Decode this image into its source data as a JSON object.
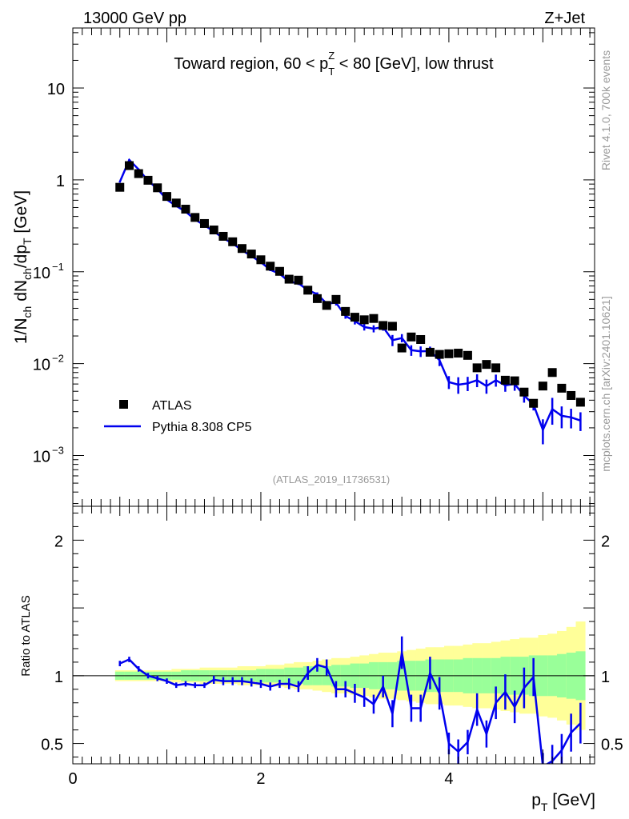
{
  "header": {
    "energy_label": "13000 GeV pp",
    "process_label": "Z+Jet",
    "side_rivet": "Rivet 4.1.0,  700k events",
    "side_source": "mcplots.cern.ch [arXiv:2401.10621]",
    "analysis_id": "(ATLAS_2019_I1736531)"
  },
  "chart_data": [
    {
      "type": "scatter",
      "name": "main",
      "title": "Toward region, 60 < p_T^Z < 80 [GeV], low thrust",
      "ylabel": "1/N_ch dN_ch/dp_T [GeV]",
      "yscale": "log",
      "ylim": [
        0.00028,
        45
      ],
      "xlim": [
        0,
        5.55
      ],
      "y_ticks": [
        {
          "value": 10,
          "label": "10"
        },
        {
          "value": 1,
          "label": "1"
        },
        {
          "value": 0.1,
          "label": "10",
          "exp": "−1"
        },
        {
          "value": 0.01,
          "label": "10",
          "exp": "−2"
        },
        {
          "value": 0.001,
          "label": "10",
          "exp": "−3"
        }
      ],
      "legend": [
        {
          "name": "ATLAS",
          "marker": "square",
          "color": "#000000"
        },
        {
          "name": "Pythia 8.308 CP5",
          "marker": "line",
          "color": "#0000ee"
        }
      ],
      "series": [
        {
          "name": "ATLAS",
          "x": [
            0.5,
            0.6,
            0.7,
            0.8,
            0.9,
            1.0,
            1.1,
            1.2,
            1.3,
            1.4,
            1.5,
            1.6,
            1.7,
            1.8,
            1.9,
            2.0,
            2.1,
            2.2,
            2.3,
            2.4,
            2.5,
            2.6,
            2.7,
            2.8,
            2.9,
            3.0,
            3.1,
            3.2,
            3.3,
            3.4,
            3.5,
            3.6,
            3.7,
            3.8,
            3.9,
            4.0,
            4.1,
            4.2,
            4.3,
            4.4,
            4.5,
            4.6,
            4.7,
            4.8,
            4.9,
            5.0,
            5.1,
            5.2,
            5.3,
            5.4
          ],
          "values": [
            0.83,
            1.43,
            1.17,
            0.99,
            0.82,
            0.66,
            0.56,
            0.48,
            0.39,
            0.335,
            0.285,
            0.243,
            0.212,
            0.179,
            0.156,
            0.135,
            0.115,
            0.101,
            0.083,
            0.081,
            0.063,
            0.051,
            0.043,
            0.05,
            0.037,
            0.032,
            0.03,
            0.031,
            0.026,
            0.0255,
            0.0148,
            0.0195,
            0.0183,
            0.0133,
            0.0126,
            0.0128,
            0.013,
            0.0123,
            0.009,
            0.0098,
            0.009,
            0.0066,
            0.0065,
            0.0049,
            0.0037,
            0.0057,
            0.008,
            0.0054,
            0.0045,
            0.0038
          ]
        },
        {
          "name": "Pythia 8.308 CP5",
          "x": [
            0.5,
            0.6,
            0.7,
            0.8,
            0.9,
            1.0,
            1.1,
            1.2,
            1.3,
            1.4,
            1.5,
            1.6,
            1.7,
            1.8,
            1.9,
            2.0,
            2.1,
            2.2,
            2.3,
            2.4,
            2.5,
            2.6,
            2.7,
            2.8,
            2.9,
            3.0,
            3.1,
            3.2,
            3.3,
            3.4,
            3.5,
            3.6,
            3.7,
            3.8,
            3.9,
            4.0,
            4.1,
            4.2,
            4.3,
            4.4,
            4.5,
            4.6,
            4.7,
            4.8,
            4.9,
            5.0,
            5.1,
            5.2,
            5.3,
            5.4
          ],
          "values": [
            0.95,
            1.65,
            1.3,
            0.98,
            0.8,
            0.61,
            0.52,
            0.45,
            0.37,
            0.32,
            0.275,
            0.232,
            0.203,
            0.171,
            0.148,
            0.127,
            0.105,
            0.095,
            0.078,
            0.075,
            0.063,
            0.057,
            0.045,
            0.046,
            0.033,
            0.029,
            0.025,
            0.024,
            0.025,
            0.018,
            0.019,
            0.014,
            0.0136,
            0.0137,
            0.0109,
            0.0063,
            0.0059,
            0.0061,
            0.0066,
            0.0057,
            0.0066,
            0.0058,
            0.006,
            0.0045,
            0.0036,
            0.0019,
            0.0032,
            0.0027,
            0.0026,
            0.0024
          ]
        }
      ]
    },
    {
      "type": "line",
      "name": "ratio",
      "ylabel": "Ratio to ATLAS",
      "xlabel": "p_T [GeV]",
      "ylim": [
        0.35,
        2.25
      ],
      "xlim": [
        0,
        5.55
      ],
      "y_ticks": [
        0.5,
        1,
        2
      ],
      "y_tick_labels": [
        "0.5",
        "1",
        "2"
      ],
      "x_ticks": [
        0,
        2,
        4
      ],
      "x_tick_labels": [
        "0",
        "2",
        "4"
      ],
      "x": [
        0.5,
        0.6,
        0.7,
        0.8,
        0.9,
        1.0,
        1.1,
        1.2,
        1.3,
        1.4,
        1.5,
        1.6,
        1.7,
        1.8,
        1.9,
        2.0,
        2.1,
        2.2,
        2.3,
        2.4,
        2.5,
        2.6,
        2.7,
        2.8,
        2.9,
        3.0,
        3.1,
        3.2,
        3.3,
        3.4,
        3.5,
        3.6,
        3.7,
        3.8,
        3.9,
        4.0,
        4.1,
        4.2,
        4.3,
        4.4,
        4.5,
        4.6,
        4.7,
        4.8,
        4.9,
        5.0,
        5.1,
        5.2,
        5.3,
        5.4
      ],
      "ratio": [
        1.09,
        1.12,
        1.05,
        1.0,
        0.98,
        0.96,
        0.93,
        0.94,
        0.93,
        0.93,
        0.97,
        0.96,
        0.96,
        0.96,
        0.95,
        0.94,
        0.92,
        0.94,
        0.94,
        0.92,
        1.02,
        1.08,
        1.06,
        0.9,
        0.9,
        0.87,
        0.84,
        0.79,
        0.92,
        0.72,
        1.17,
        0.76,
        0.76,
        1.02,
        0.87,
        0.5,
        0.44,
        0.51,
        0.75,
        0.57,
        0.8,
        0.88,
        0.77,
        0.91,
        0.99,
        0.33,
        0.37,
        0.45,
        0.58,
        0.65
      ],
      "ratio_err": [
        0.02,
        0.02,
        0.02,
        0.02,
        0.02,
        0.02,
        0.02,
        0.02,
        0.02,
        0.02,
        0.03,
        0.03,
        0.03,
        0.03,
        0.03,
        0.03,
        0.03,
        0.03,
        0.04,
        0.04,
        0.05,
        0.05,
        0.06,
        0.06,
        0.06,
        0.07,
        0.07,
        0.07,
        0.08,
        0.1,
        0.12,
        0.1,
        0.1,
        0.12,
        0.12,
        0.08,
        0.09,
        0.09,
        0.12,
        0.1,
        0.12,
        0.13,
        0.12,
        0.15,
        0.14,
        0.1,
        0.12,
        0.12,
        0.14,
        0.15
      ],
      "band_inner": [
        0.03,
        0.03,
        0.03,
        0.03,
        0.03,
        0.03,
        0.03,
        0.04,
        0.04,
        0.04,
        0.04,
        0.04,
        0.04,
        0.04,
        0.04,
        0.05,
        0.05,
        0.05,
        0.06,
        0.06,
        0.07,
        0.07,
        0.07,
        0.08,
        0.08,
        0.09,
        0.09,
        0.1,
        0.1,
        0.1,
        0.11,
        0.11,
        0.11,
        0.12,
        0.12,
        0.12,
        0.12,
        0.13,
        0.13,
        0.13,
        0.13,
        0.14,
        0.14,
        0.14,
        0.15,
        0.15,
        0.15,
        0.16,
        0.17,
        0.18
      ],
      "band_outer": [
        0.04,
        0.04,
        0.04,
        0.04,
        0.04,
        0.04,
        0.05,
        0.05,
        0.05,
        0.06,
        0.06,
        0.06,
        0.06,
        0.07,
        0.07,
        0.07,
        0.08,
        0.08,
        0.09,
        0.1,
        0.1,
        0.11,
        0.12,
        0.13,
        0.13,
        0.14,
        0.15,
        0.16,
        0.17,
        0.17,
        0.18,
        0.19,
        0.2,
        0.21,
        0.21,
        0.22,
        0.22,
        0.23,
        0.24,
        0.24,
        0.25,
        0.26,
        0.27,
        0.28,
        0.28,
        0.3,
        0.31,
        0.33,
        0.36,
        0.4
      ],
      "colors": {
        "data_line": "#000000",
        "mc_line": "#0000ee",
        "band_inner": "#99ff99",
        "band_outer": "#ffff99"
      }
    }
  ]
}
